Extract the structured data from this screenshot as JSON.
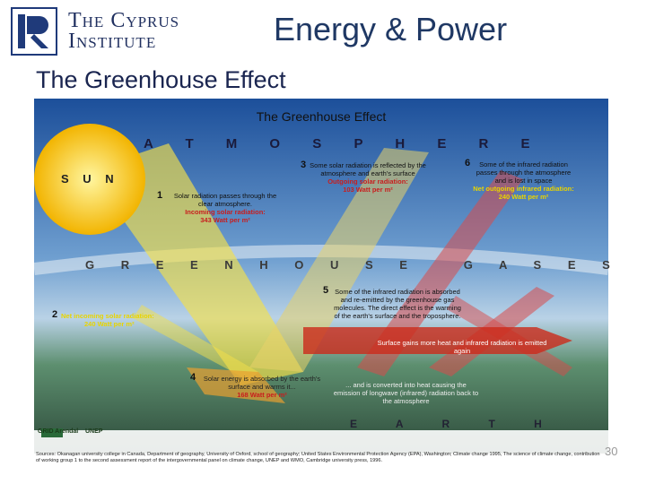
{
  "header": {
    "logo_line1": "The Cyprus",
    "logo_line2": "Institute",
    "title": "Energy & Power",
    "subtitle": "The Greenhouse Effect"
  },
  "diagram": {
    "title": "The Greenhouse Effect",
    "atmosphere": "A T M O S P H E R E",
    "sun": "S U N",
    "greenhouse_gases": "G R E E N H O U S E   G A S E S",
    "earth": "E A R T H",
    "steps": [
      {
        "number": "1",
        "text": "Solar radiation passes through the clear atmosphere.",
        "highlight": "Incoming solar radiation:",
        "amount": "343 Watt per m²"
      },
      {
        "number": "2",
        "text": "",
        "highlight": "Net incoming solar radiation:",
        "amount": "240 Watt per m²"
      },
      {
        "number": "3",
        "text": "Some solar radiation is reflected by the atmosphere and earth's surface",
        "highlight": "Outgoing solar radiation:",
        "amount": "103 Watt per m²"
      },
      {
        "number": "4",
        "text": "Solar energy is absorbed by the earth's surface and warms it...",
        "highlight": "",
        "amount": "168 Watt per m²"
      },
      {
        "number": "5",
        "text": "Some of the infrared radiation is absorbed and re-emitted by the greenhouse gas molecules. The direct effect is the warming of the earth's surface and the troposphere.",
        "highlight": "",
        "amount": ""
      },
      {
        "number": "6",
        "text": "Some of the infrared radiation passes through the atmosphere and is lost in space",
        "highlight": "Net outgoing infrared radiation:",
        "amount": "240 Watt per m²"
      }
    ],
    "surface_note": "Surface gains more heat and infrared radiation is emitted again",
    "converted_note": "... and is converted into heat causing the emission of longwave (infrared) radiation back to the atmosphere",
    "logos": [
      "GRID Arendal",
      "UNEP"
    ],
    "source": "Sources: Okanagan university college in Canada, Department of geography, University of Oxford, school of geography; United States Environmental Protection Agency (EPA), Washington; Climate change 1995, The science of climate change, contribution of working group 1 to the second assessment report of the intergovernmental panel on climate change, UNEP and WMO, Cambridge university press, 1996."
  },
  "page_number": "30"
}
